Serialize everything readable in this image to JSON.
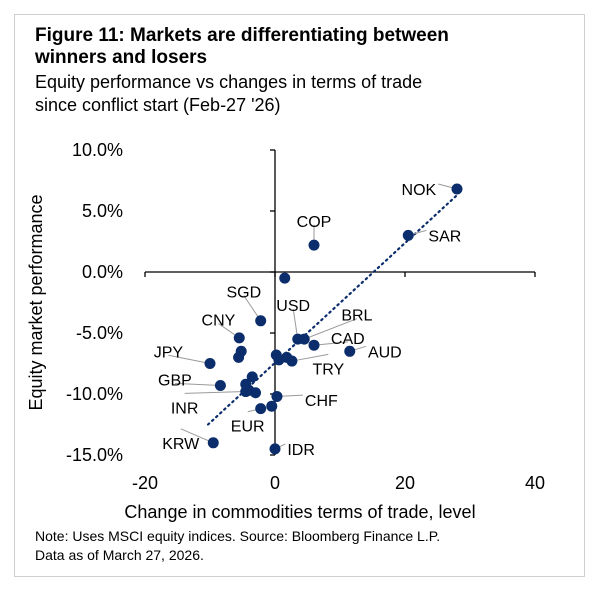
{
  "header": {
    "title_line1": "Figure 11: Markets are differentiating between",
    "title_line2": "winners and losers",
    "subtitle_line1": "Equity performance vs changes in terms of trade",
    "subtitle_line2": "since conflict start (Feb-27 '26)"
  },
  "footer": {
    "note_line1": "Note: Uses MSCI equity indices. Source: Bloomberg Finance L.P.",
    "note_line2": "Data as of March 27, 2026."
  },
  "colors": {
    "point": "#0b2d6b",
    "leader": "#9a9a9a",
    "axis": "#000000",
    "trend": "#0b2d6b"
  },
  "chart_data": {
    "type": "scatter",
    "xlabel": "Change in commodities terms of trade, level",
    "ylabel": "Equity market performance",
    "xlim": [
      -20,
      40
    ],
    "ylim": [
      -15,
      10
    ],
    "xticks": [
      -20,
      0,
      20,
      40
    ],
    "xtick_labels": [
      "-20",
      "0",
      "20",
      "40"
    ],
    "yticks": [
      10,
      5,
      0,
      -5,
      -10,
      -15
    ],
    "ytick_labels": [
      "10.0%",
      "5.0%",
      "0.0%",
      "-5.0%",
      "-10.0%",
      "-15.0%"
    ],
    "grid": false,
    "trendline": {
      "style": "dotted",
      "x": [
        -10.3,
        28.0
      ],
      "y": [
        -12.5,
        6.3
      ]
    },
    "labeled_points": [
      {
        "label": "NOK",
        "x": 28.0,
        "y": 6.8,
        "lx": 24.8,
        "ly": 6.8,
        "anchor": "end"
      },
      {
        "label": "COP",
        "x": 6.0,
        "y": 2.2,
        "lx": 6.0,
        "ly": 4.2,
        "anchor": "middle"
      },
      {
        "label": "SAR",
        "x": 20.5,
        "y": 3.0,
        "lx": 23.6,
        "ly": 3.0,
        "anchor": "start"
      },
      {
        "label": "SGD",
        "x": -2.2,
        "y": -4.0,
        "lx": -4.8,
        "ly": -1.6,
        "anchor": "middle"
      },
      {
        "label": "USD",
        "x": 3.5,
        "y": -5.5,
        "lx": 2.8,
        "ly": -2.7,
        "anchor": "middle"
      },
      {
        "label": "BRL",
        "x": 4.5,
        "y": -5.5,
        "lx": 12.6,
        "ly": -3.5,
        "anchor": "middle"
      },
      {
        "label": "CNY",
        "x": -5.5,
        "y": -5.4,
        "lx": -8.7,
        "ly": -3.9,
        "anchor": "middle"
      },
      {
        "label": "CAD",
        "x": 6.0,
        "y": -6.0,
        "lx": 11.2,
        "ly": -5.4,
        "anchor": "middle"
      },
      {
        "label": "AUD",
        "x": 11.5,
        "y": -6.5,
        "lx": 14.3,
        "ly": -6.5,
        "anchor": "start"
      },
      {
        "label": "JPY",
        "x": -10.0,
        "y": -7.5,
        "lx": -16.4,
        "ly": -6.5,
        "anchor": "middle"
      },
      {
        "label": "TRY",
        "x": 2.6,
        "y": -7.3,
        "lx": 8.2,
        "ly": -7.9,
        "anchor": "middle"
      },
      {
        "label": "GBP",
        "x": -8.4,
        "y": -9.3,
        "lx": -15.4,
        "ly": -8.8,
        "anchor": "middle"
      },
      {
        "label": "CHF",
        "x": 0.3,
        "y": -10.2,
        "lx": 4.6,
        "ly": -10.5,
        "anchor": "start"
      },
      {
        "label": "INR",
        "x": -4.5,
        "y": -9.8,
        "lx": -13.9,
        "ly": -11.1,
        "anchor": "middle"
      },
      {
        "label": "EUR",
        "x": -2.2,
        "y": -11.2,
        "lx": -4.2,
        "ly": -12.6,
        "anchor": "middle"
      },
      {
        "label": "KRW",
        "x": -9.5,
        "y": -14.0,
        "lx": -14.5,
        "ly": -14.0,
        "anchor": "middle"
      },
      {
        "label": "IDR",
        "x": 0.0,
        "y": -14.5,
        "lx": 1.9,
        "ly": -14.5,
        "anchor": "start"
      }
    ],
    "unlabeled_points": [
      {
        "x": 1.5,
        "y": -0.5
      },
      {
        "x": -5.2,
        "y": -6.5
      },
      {
        "x": -5.6,
        "y": -7.0
      },
      {
        "x": 0.2,
        "y": -6.8
      },
      {
        "x": 1.8,
        "y": -7.0
      },
      {
        "x": 0.6,
        "y": -7.2
      },
      {
        "x": -3.5,
        "y": -8.6
      },
      {
        "x": -4.5,
        "y": -9.2
      },
      {
        "x": -4.0,
        "y": -9.7
      },
      {
        "x": -3.0,
        "y": -9.9
      },
      {
        "x": -0.5,
        "y": -11.0
      }
    ]
  }
}
